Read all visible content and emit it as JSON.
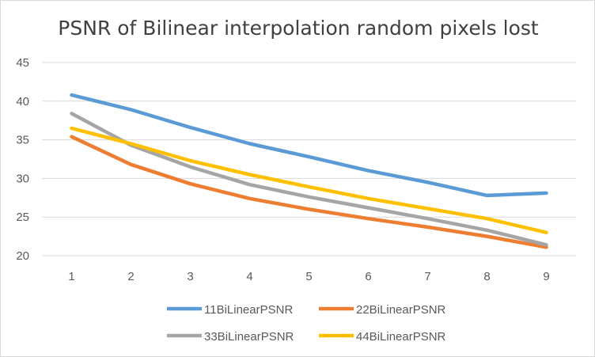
{
  "chart_data": {
    "type": "line",
    "title": "PSNR of Bilinear interpolation random pixels lost",
    "xlabel": "",
    "ylabel": "",
    "categories": [
      "1",
      "2",
      "3",
      "4",
      "5",
      "6",
      "7",
      "8",
      "9"
    ],
    "ylim": [
      20,
      45
    ],
    "yticks": [
      20,
      25,
      30,
      35,
      40,
      45
    ],
    "grid": "horizontal",
    "legend": "bottom",
    "series": [
      {
        "name": "11BiLinearPSNR",
        "color": "#5b9bd5",
        "values": [
          40.8,
          38.9,
          36.6,
          34.5,
          32.8,
          31.0,
          29.5,
          27.8,
          28.1
        ]
      },
      {
        "name": "22BiLinearPSNR",
        "color": "#ed7d31",
        "values": [
          35.4,
          31.8,
          29.3,
          27.4,
          26.0,
          24.8,
          23.7,
          22.5,
          21.1
        ]
      },
      {
        "name": "33BiLinearPSNR",
        "color": "#a5a5a5",
        "values": [
          38.4,
          34.3,
          31.5,
          29.2,
          27.6,
          26.2,
          24.8,
          23.3,
          21.4
        ]
      },
      {
        "name": "44BiLinearPSNR",
        "color": "#ffc000",
        "values": [
          36.5,
          34.5,
          32.3,
          30.5,
          28.9,
          27.4,
          26.1,
          24.8,
          23.0
        ]
      }
    ]
  }
}
